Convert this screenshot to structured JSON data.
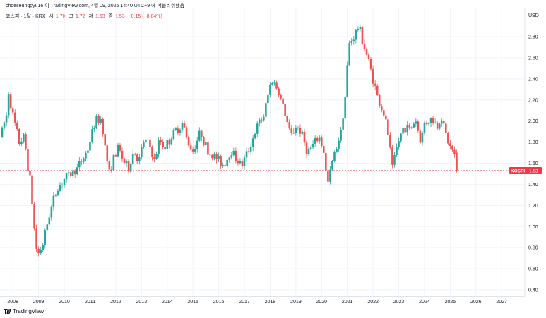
{
  "header": {
    "publish_line": "choeseunggyu16 이 TradingView.com, 4월 09, 2025 14:40 UTC+9 에 퍼블리쉬했음"
  },
  "legend": {
    "name": "코스피 · 1달 · KRX",
    "open_label": "시",
    "open_value": "1.70",
    "high_label": "고",
    "high_value": "1.72",
    "low_label": "저",
    "low_value": "1.53",
    "close_label": "종",
    "close_value": "1.53",
    "change": "−0.15 (−8.84%)"
  },
  "branding": {
    "text": "TradingView"
  },
  "colors": {
    "up": "#26a69a",
    "down": "#ef5350",
    "price_line": "#f23645",
    "grid": "#f0f3fa"
  },
  "chart_data": {
    "type": "candlestick",
    "symbol": "KOSPI",
    "currency_label": "USD",
    "last_price": 1.53,
    "last_price_label": "1.53",
    "x_ticks": [
      "2008",
      "2009",
      "2010",
      "2011",
      "2012",
      "2013",
      "2014",
      "2015",
      "2016",
      "2017",
      "2018",
      "2019",
      "2020",
      "2021",
      "2022",
      "2023",
      "2024",
      "2025",
      "2026",
      "2027"
    ],
    "y_ticks": [
      "0.40",
      "0.60",
      "0.80",
      "1.00",
      "1.20",
      "1.40",
      "1.60",
      "1.80",
      "2.00",
      "2.20",
      "2.40",
      "2.60",
      "2.80"
    ],
    "x_range": [
      2007.5,
      2027.9
    ],
    "y_range": [
      0.35,
      2.95
    ],
    "grid": true,
    "anchors": [
      [
        2007.5,
        1.85
      ],
      [
        2007.75,
        2.05
      ],
      [
        2007.83,
        2.28
      ],
      [
        2008.0,
        2.05
      ],
      [
        2008.25,
        1.8
      ],
      [
        2008.45,
        1.85
      ],
      [
        2008.55,
        1.62
      ],
      [
        2008.7,
        1.4
      ],
      [
        2008.8,
        1.05
      ],
      [
        2008.95,
        0.72
      ],
      [
        2009.15,
        0.82
      ],
      [
        2009.4,
        1.1
      ],
      [
        2009.7,
        1.35
      ],
      [
        2010.0,
        1.45
      ],
      [
        2010.5,
        1.55
      ],
      [
        2010.9,
        1.72
      ],
      [
        2011.2,
        2.0
      ],
      [
        2011.45,
        2.02
      ],
      [
        2011.6,
        1.72
      ],
      [
        2011.75,
        1.5
      ],
      [
        2011.85,
        1.6
      ],
      [
        2012.1,
        1.75
      ],
      [
        2012.3,
        1.62
      ],
      [
        2012.5,
        1.55
      ],
      [
        2012.7,
        1.72
      ],
      [
        2012.9,
        1.62
      ],
      [
        2013.1,
        1.82
      ],
      [
        2013.3,
        1.78
      ],
      [
        2013.5,
        1.62
      ],
      [
        2013.7,
        1.82
      ],
      [
        2013.9,
        1.75
      ],
      [
        2014.3,
        1.9
      ],
      [
        2014.6,
        1.98
      ],
      [
        2014.8,
        1.8
      ],
      [
        2015.0,
        1.72
      ],
      [
        2015.3,
        1.9
      ],
      [
        2015.6,
        1.7
      ],
      [
        2015.9,
        1.65
      ],
      [
        2016.2,
        1.58
      ],
      [
        2016.5,
        1.72
      ],
      [
        2016.75,
        1.62
      ],
      [
        2016.9,
        1.58
      ],
      [
        2017.2,
        1.75
      ],
      [
        2017.5,
        1.95
      ],
      [
        2017.75,
        2.05
      ],
      [
        2017.95,
        2.28
      ],
      [
        2018.05,
        2.4
      ],
      [
        2018.3,
        2.3
      ],
      [
        2018.55,
        2.1
      ],
      [
        2018.8,
        1.85
      ],
      [
        2019.0,
        1.95
      ],
      [
        2019.2,
        1.9
      ],
      [
        2019.45,
        1.7
      ],
      [
        2019.7,
        1.78
      ],
      [
        2019.9,
        1.85
      ],
      [
        2020.1,
        1.7
      ],
      [
        2020.22,
        1.38
      ],
      [
        2020.45,
        1.65
      ],
      [
        2020.75,
        1.9
      ],
      [
        2020.95,
        2.3
      ],
      [
        2021.05,
        2.72
      ],
      [
        2021.25,
        2.8
      ],
      [
        2021.45,
        2.9
      ],
      [
        2021.6,
        2.75
      ],
      [
        2021.85,
        2.55
      ],
      [
        2022.0,
        2.4
      ],
      [
        2022.2,
        2.2
      ],
      [
        2022.45,
        2.05
      ],
      [
        2022.6,
        1.85
      ],
      [
        2022.75,
        1.55
      ],
      [
        2022.95,
        1.78
      ],
      [
        2023.2,
        1.95
      ],
      [
        2023.45,
        1.92
      ],
      [
        2023.65,
        2.02
      ],
      [
        2023.85,
        1.8
      ],
      [
        2024.0,
        1.98
      ],
      [
        2024.3,
        2.02
      ],
      [
        2024.5,
        1.95
      ],
      [
        2024.65,
        2.05
      ],
      [
        2024.85,
        1.85
      ],
      [
        2025.0,
        1.75
      ],
      [
        2025.15,
        1.7
      ],
      [
        2025.25,
        1.53
      ]
    ]
  }
}
